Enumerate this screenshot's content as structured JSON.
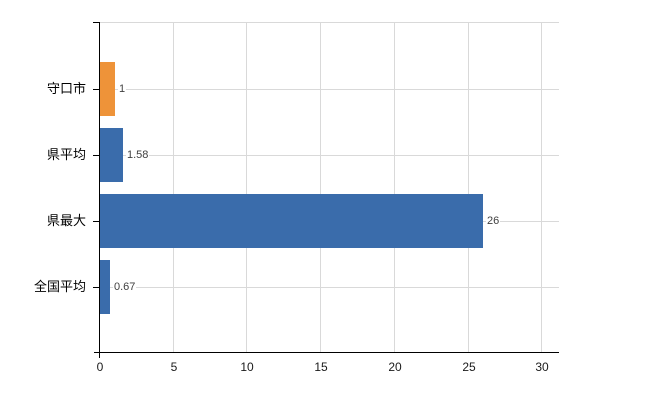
{
  "chart_data": {
    "type": "bar",
    "orientation": "horizontal",
    "title": "",
    "legend": "none",
    "grid": "on",
    "categories": [
      "守口市",
      "県平均",
      "県最大",
      "全国平均"
    ],
    "values": [
      1,
      1.58,
      26,
      0.67
    ],
    "value_labels": [
      "1",
      "1.58",
      "26",
      "0.67"
    ],
    "bar_colors": [
      "#ee9339",
      "#3a6cab",
      "#3a6cab",
      "#3a6cab"
    ],
    "x_ticks": [
      "0",
      "5",
      "10",
      "15",
      "20",
      "25",
      "30"
    ],
    "x_tick_values": [
      0,
      5,
      10,
      15,
      20,
      25,
      30
    ],
    "xlim": [
      0,
      31.2
    ],
    "colors": {
      "highlight_bar": "#ee9339",
      "default_bar": "#3a6cab",
      "gridline": "#d9d9d9",
      "axis": "#000000",
      "category_label": "#000000",
      "x_tick_label": "#1a1a1a",
      "value_label": "#404040",
      "background": "#ffffff"
    }
  }
}
